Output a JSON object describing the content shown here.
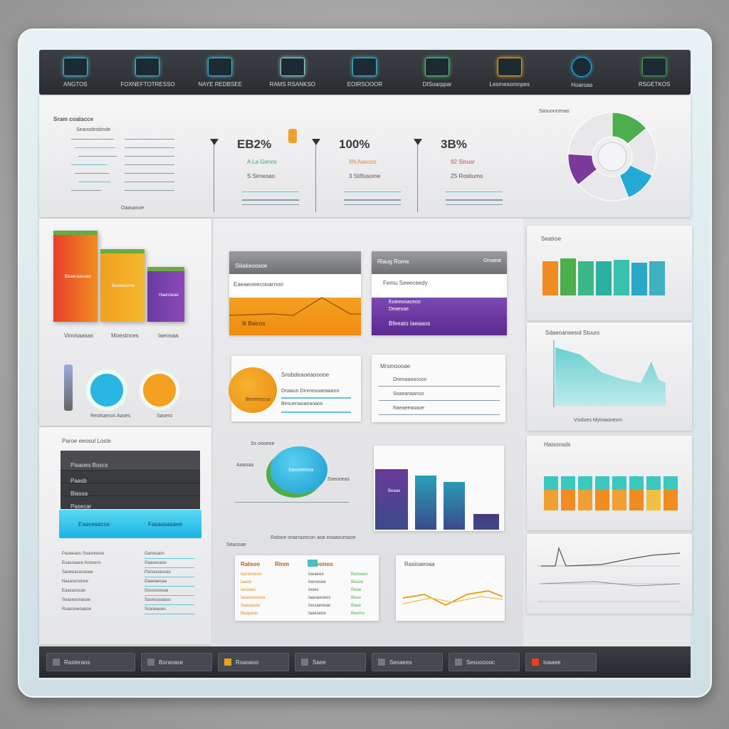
{
  "nav": {
    "items": [
      {
        "label": "ANGTOS",
        "icon": "monitor-icon",
        "color": "#3fb6d6"
      },
      {
        "label": "FOXNEFTOTRESSO",
        "icon": "document-icon",
        "color": "#3fb6d6"
      },
      {
        "label": "NAYE REDBSEE",
        "icon": "chart-icon",
        "color": "#3fb6d6"
      },
      {
        "label": "RAMS RSANKSO",
        "icon": "image-icon",
        "color": "#8fd0c8"
      },
      {
        "label": "EOIRSOOOR",
        "icon": "calendar-icon",
        "color": "#3fb6d6"
      },
      {
        "label": "DISoarppar",
        "icon": "grid-icon",
        "color": "#4fc07a"
      },
      {
        "label": "Lesmesomnpes",
        "icon": "folder-icon",
        "color": "#e8a020"
      },
      {
        "label": "Hoaroas",
        "icon": "globe-icon",
        "color": "#1fb0e8"
      },
      {
        "label": "RSGETKOS",
        "icon": "table-icon",
        "color": "#4a9a50"
      }
    ]
  },
  "stats": {
    "list_title": "Sram coalacce",
    "list_subtitle": "Seavodesbinde",
    "list_footer": "Oaasanoe",
    "kpis": [
      {
        "value": "EB2%",
        "line1": "A La Genns",
        "line2": "S Simeoao",
        "color": "#3aa870"
      },
      {
        "value": "100%",
        "line1": "8N Aasoos",
        "line2": "3 Stiftusome",
        "color": "#e08a30"
      },
      {
        "value": "3B%",
        "line1": "92 Sinusr",
        "line2": "Z5 Rostiumo",
        "color": "#d04050"
      }
    ],
    "donut_label": "Sasuoncenao",
    "donut_segments": [
      {
        "color": "#4cae4c",
        "value": 0.14
      },
      {
        "color": "#e8e8ea",
        "value": 0.18
      },
      {
        "color": "#27a9d6",
        "value": 0.12
      },
      {
        "color": "#e8e8ea",
        "value": 0.2
      },
      {
        "color": "#7a3a9a",
        "value": 0.12
      },
      {
        "color": "#e8e8ea",
        "value": 0.24
      }
    ]
  },
  "left": {
    "bars": [
      {
        "label": "Vinosaasas",
        "inner": "Beaecaasoao",
        "value": 1.0,
        "colors": [
          "#e8402a",
          "#f08c20"
        ]
      },
      {
        "label": "Moestnces",
        "inner": "Baneescme",
        "value": 0.8,
        "colors": [
          "#f0a020",
          "#f4b830"
        ]
      },
      {
        "label": "Iaeosaa",
        "inner": "Haenoeae",
        "value": 0.6,
        "colors": [
          "#6a3aa0",
          "#8a4ab8"
        ]
      }
    ],
    "gauges_label": "Reotsamos Aases",
    "gauges_label2": "Sasero",
    "menu_title": "Paroe eeosul Loste",
    "menu_items": [
      "Pisaoes Boscs",
      "Paasb",
      "Biassa",
      "Pasecar"
    ],
    "menu_highlight": [
      "Eaaceaacos",
      "Fasaasasaee"
    ],
    "list_rows": [
      [
        "Paoeeaos Soaoooeoo",
        "Oanesaon"
      ],
      [
        "Eoasoaace Anooess",
        "Gaasecaoe"
      ],
      [
        "Saoeeasooaoae",
        "Panuooasoas"
      ],
      [
        "Nasasunonee",
        "Oaaeaesaa"
      ],
      [
        "Eaasacocae",
        "Ossosoesaa"
      ],
      [
        "Seaseoonasae",
        "Sasesuoaaso"
      ],
      [
        "Ruaoooeoaaoe",
        "Scaoeaoes"
      ]
    ]
  },
  "center": {
    "card1": {
      "header": "Siiiakeoosoe",
      "subheader": "Eaeaeoeecooarnoo",
      "footer": "Ik Baicos"
    },
    "card2": {
      "header": "Rlaug Rome",
      "header_right": "Orsaeat",
      "subheader": "Femu Seeeceedy",
      "lines": [
        "Eoieeooaceoo",
        "Deaesae"
      ],
      "footer": "Bfeeato Iaeaaos"
    },
    "card3": {
      "title": "Snsbdeaoeaooooe",
      "circle": "Beneescuo",
      "rows": [
        "Dnaaun Dinmosoaeaaano",
        "Besuenaoaeanaos"
      ]
    },
    "card4": {
      "title": "Mrsmoooae",
      "rows": [
        "Dneoaaoocoon",
        "Soaeanaanoo",
        "Raeaeeaoaoe"
      ]
    },
    "card5": {
      "title": "Ss oooeoe",
      "pie_label": "Sacoeeeoa",
      "side": "Sseooeas",
      "left": "Aaaoaa"
    },
    "card6": {
      "bars": [
        {
          "value": 0.95,
          "color": "#6a3a9a",
          "label": "Beaae"
        },
        {
          "value": 0.85,
          "color": "#2aa0b8"
        },
        {
          "value": 0.75,
          "color": "#2a9ab8"
        },
        {
          "value": 0.25,
          "color": "#4a3a7a"
        }
      ],
      "footer": "Ratoce onarrazecon aoa eoaaoumaoe"
    },
    "note": "Seansae",
    "table": {
      "headers": [
        "Ratsoo",
        "Rinm",
        "Reeonos"
      ],
      "rows": [
        [
          "Iasrasoeoo",
          "Ioeaeee",
          "Baooaes"
        ],
        [
          "Iaaoo",
          "Ioenosee",
          "Beaoo"
        ],
        [
          "Iasooes",
          "Iooes",
          "Reoe"
        ],
        [
          "Iaoaseoonoe",
          "Iaaoaooeos",
          "Beao"
        ],
        [
          "Saasaaoo",
          "Ioosaeoeae",
          "Baee"
        ],
        [
          "Beapaoo",
          "Iaaeseoe",
          "Beemo"
        ]
      ]
    },
    "card8": {
      "title": "Rasioaeoaa"
    }
  },
  "right": {
    "c1": {
      "title": "Seatroe",
      "values": [
        0.6,
        0.65,
        0.6,
        0.6,
        0.62,
        0.58,
        0.6
      ],
      "colors": [
        "#f08c20",
        "#4cae4c",
        "#3ab88a",
        "#2ab0a0",
        "#3ac0b0",
        "#2aa8c8",
        "#40b0c0"
      ]
    },
    "c2": {
      "title": "Sdaeoansesol Stuurs",
      "footer": "Vsidoes Myiniaonesm"
    },
    "c3": {
      "title": "Haisonsds",
      "values": [
        0.6,
        0.6,
        0.6,
        0.6,
        0.6,
        0.6,
        0.6,
        0.6
      ],
      "colors": [
        "#f0a030",
        "#f08c20",
        "#f0a030",
        "#f08c20",
        "#f0a030",
        "#f08c20",
        "#f0c040",
        "#f08c20"
      ]
    },
    "c4": {
      "title": ""
    }
  },
  "bottom": {
    "buttons": [
      "Rasteraos",
      "Boraoase",
      "Rsaoaoo",
      "Saee",
      "Seoaees",
      "Sesoooooc",
      "Ioaaee"
    ]
  }
}
